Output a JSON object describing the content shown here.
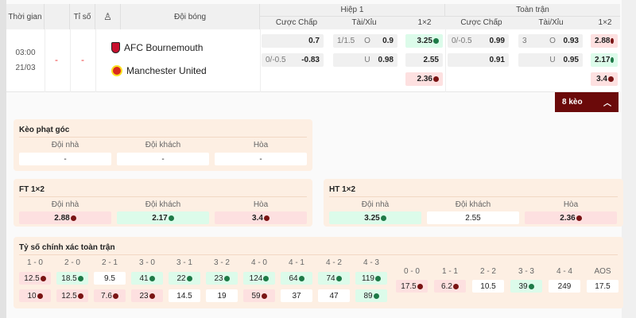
{
  "header": {
    "time": "Thời gian",
    "score": "Tỉ số",
    "team": "Đội bóng",
    "h1": "Hiệp 1",
    "ft": "Toàn trận",
    "handicap": "Cược Chấp",
    "ou": "Tài/Xỉu",
    "x12": "1×2"
  },
  "match": {
    "time": "03:00",
    "date": "21/03",
    "dash1": "-",
    "dash2": "-",
    "home": "AFC Bournemouth",
    "away": "Manchester United"
  },
  "odds": {
    "h1_hdp": [
      {
        "line": "",
        "val": "0.7"
      },
      {
        "line": "0/-0.5",
        "val": "-0.83"
      }
    ],
    "h1_ou": [
      {
        "line": "1/1.5",
        "side": "O",
        "val": "0.9"
      },
      {
        "line": "",
        "side": "U",
        "val": "0.98"
      }
    ],
    "h1_1x2": [
      {
        "val": "3.25",
        "trend": "up"
      },
      {
        "val": "2.55",
        "trend": ""
      },
      {
        "val": "2.36",
        "trend": "down"
      }
    ],
    "ft_hdp": [
      {
        "line": "0/-0.5",
        "val": "0.99"
      },
      {
        "line": "",
        "val": "0.91"
      }
    ],
    "ft_ou": [
      {
        "line": "3",
        "side": "O",
        "val": "0.93"
      },
      {
        "line": "",
        "side": "U",
        "val": "0.95"
      }
    ],
    "ft_1x2": [
      {
        "val": "2.88",
        "trend": "down"
      },
      {
        "val": "2.17",
        "trend": "up"
      },
      {
        "val": "3.4",
        "trend": "down"
      }
    ]
  },
  "more": {
    "label": "8 kèo"
  },
  "corner": {
    "title": "Kèo phạt góc",
    "cols": [
      {
        "label": "Đội nhà",
        "val": "-",
        "trend": ""
      },
      {
        "label": "Đội khách",
        "val": "-",
        "trend": ""
      },
      {
        "label": "Hòa",
        "val": "-",
        "trend": ""
      }
    ]
  },
  "ft1x2": {
    "title": "FT 1×2",
    "cols": [
      {
        "label": "Đội nhà",
        "val": "2.88",
        "trend": "down"
      },
      {
        "label": "Đội khách",
        "val": "2.17",
        "trend": "up"
      },
      {
        "label": "Hòa",
        "val": "3.4",
        "trend": "down"
      }
    ]
  },
  "ht1x2": {
    "title": "HT 1×2",
    "cols": [
      {
        "label": "Đội nhà",
        "val": "3.25",
        "trend": "up"
      },
      {
        "label": "Đội khách",
        "val": "2.55",
        "trend": ""
      },
      {
        "label": "Hòa",
        "val": "2.36",
        "trend": "down"
      }
    ]
  },
  "exact": {
    "title": "Tỷ số chính xác toàn trận",
    "pairs": [
      {
        "label": "1 - 0",
        "a": {
          "val": "12.5",
          "trend": "down"
        },
        "b": {
          "val": "10",
          "trend": "down"
        }
      },
      {
        "label": "2 - 0",
        "a": {
          "val": "18.5",
          "trend": "up"
        },
        "b": {
          "val": "12.5",
          "trend": "down"
        }
      },
      {
        "label": "2 - 1",
        "a": {
          "val": "9.5",
          "trend": ""
        },
        "b": {
          "val": "7.6",
          "trend": "down"
        }
      },
      {
        "label": "3 - 0",
        "a": {
          "val": "41",
          "trend": "up"
        },
        "b": {
          "val": "23",
          "trend": "down"
        }
      },
      {
        "label": "3 - 1",
        "a": {
          "val": "22",
          "trend": "up"
        },
        "b": {
          "val": "14.5",
          "trend": ""
        }
      },
      {
        "label": "3 - 2",
        "a": {
          "val": "23",
          "trend": "up"
        },
        "b": {
          "val": "19",
          "trend": ""
        }
      },
      {
        "label": "4 - 0",
        "a": {
          "val": "124",
          "trend": "up"
        },
        "b": {
          "val": "59",
          "trend": "down"
        }
      },
      {
        "label": "4 - 1",
        "a": {
          "val": "64",
          "trend": "up"
        },
        "b": {
          "val": "37",
          "trend": ""
        }
      },
      {
        "label": "4 - 2",
        "a": {
          "val": "74",
          "trend": "up"
        },
        "b": {
          "val": "47",
          "trend": ""
        }
      },
      {
        "label": "4 - 3",
        "a": {
          "val": "119",
          "trend": "up"
        },
        "b": {
          "val": "89",
          "trend": "up"
        }
      }
    ],
    "draws": [
      {
        "label": "0 - 0",
        "val": "17.5",
        "trend": "down"
      },
      {
        "label": "1 - 1",
        "val": "6.2",
        "trend": "down"
      },
      {
        "label": "2 - 2",
        "val": "10.5",
        "trend": ""
      },
      {
        "label": "3 - 3",
        "val": "39",
        "trend": "up"
      },
      {
        "label": "4 - 4",
        "val": "249",
        "trend": ""
      },
      {
        "label": "AOS",
        "val": "17.5",
        "trend": ""
      }
    ]
  },
  "colors": {
    "accent": "#6b0a0a",
    "down_bg": "#fde0e0",
    "up_bg": "#dcfbea",
    "section_bg": "#fdefe3"
  }
}
